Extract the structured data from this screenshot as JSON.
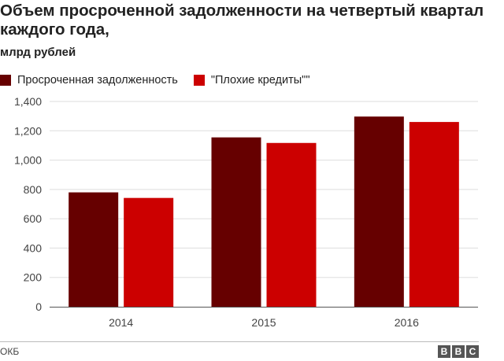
{
  "header": {
    "title": "Объем просроченной задолженности на четвертый квартал каждого года,",
    "subtitle": "млрд рублей"
  },
  "colors": {
    "series_1": "#660000",
    "series_2": "#cc0000",
    "grid": "#dddddd",
    "axis": "#555555"
  },
  "chart_data": {
    "type": "bar",
    "categories": [
      "2014",
      "2015",
      "2016"
    ],
    "series": [
      {
        "name": "Просроченная задолженность",
        "values": [
          780,
          1155,
          1297
        ]
      },
      {
        "name": "\"Плохие кредиты\"\"",
        "values": [
          742,
          1117,
          1260
        ]
      }
    ],
    "ylim": [
      0,
      1400
    ],
    "yticks": [
      0,
      200,
      400,
      600,
      800,
      1000,
      1200,
      1400
    ],
    "ytick_labels": [
      "0",
      "200",
      "400",
      "600",
      "800",
      "1,000",
      "1,200",
      "1,400"
    ],
    "grid": true,
    "legend_position": "top-left"
  },
  "footer": {
    "source": "ОКБ",
    "logo_letters": [
      "B",
      "B",
      "C"
    ]
  }
}
